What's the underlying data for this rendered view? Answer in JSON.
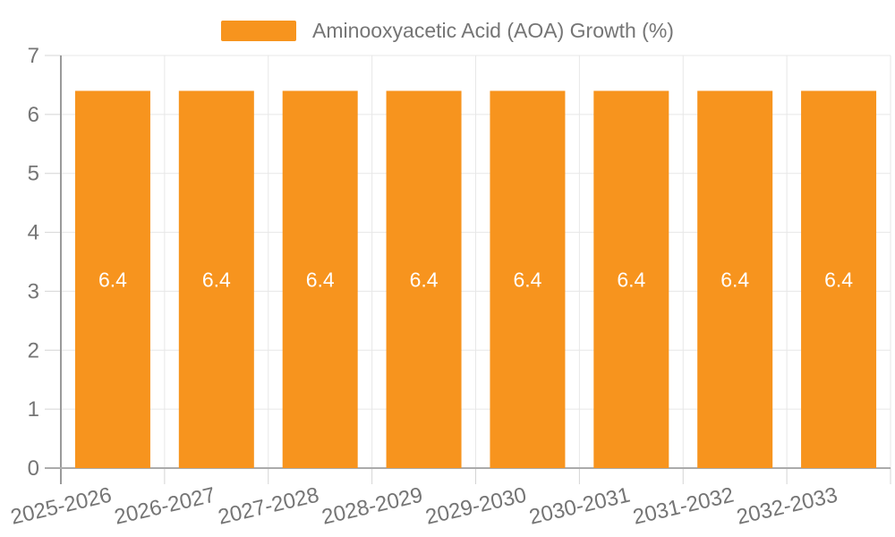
{
  "legend": {
    "label": "Aminooxyacetic Acid (AOA) Growth (%)"
  },
  "chart_data": {
    "type": "bar",
    "title": "",
    "xlabel": "",
    "ylabel": "",
    "categories": [
      "2025-2026",
      "2026-2027",
      "2027-2028",
      "2028-2029",
      "2029-2030",
      "2030-2031",
      "2031-2032",
      "2032-2033"
    ],
    "values": [
      6.4,
      6.4,
      6.4,
      6.4,
      6.4,
      6.4,
      6.4,
      6.4
    ],
    "value_labels": [
      "6.4",
      "6.4",
      "6.4",
      "6.4",
      "6.4",
      "6.4",
      "6.4",
      "6.4"
    ],
    "series_name": "Aminooxyacetic Acid (AOA) Growth (%)",
    "ylim": [
      0,
      7
    ],
    "yticks": [
      0,
      1,
      2,
      3,
      4,
      5,
      6,
      7
    ],
    "grid": true,
    "legend_position": "top",
    "x_label_rotation_deg": -13,
    "colors": {
      "bar": "#F7941E",
      "value_label": "#ffffff",
      "grid_line": "#e7e7e7",
      "tick_line": "#d4d4d4",
      "y_axis_line": "#9a9a9a",
      "x_axis_line": "#ababab",
      "axis_label": "#757575",
      "background": "#ffffff"
    }
  }
}
